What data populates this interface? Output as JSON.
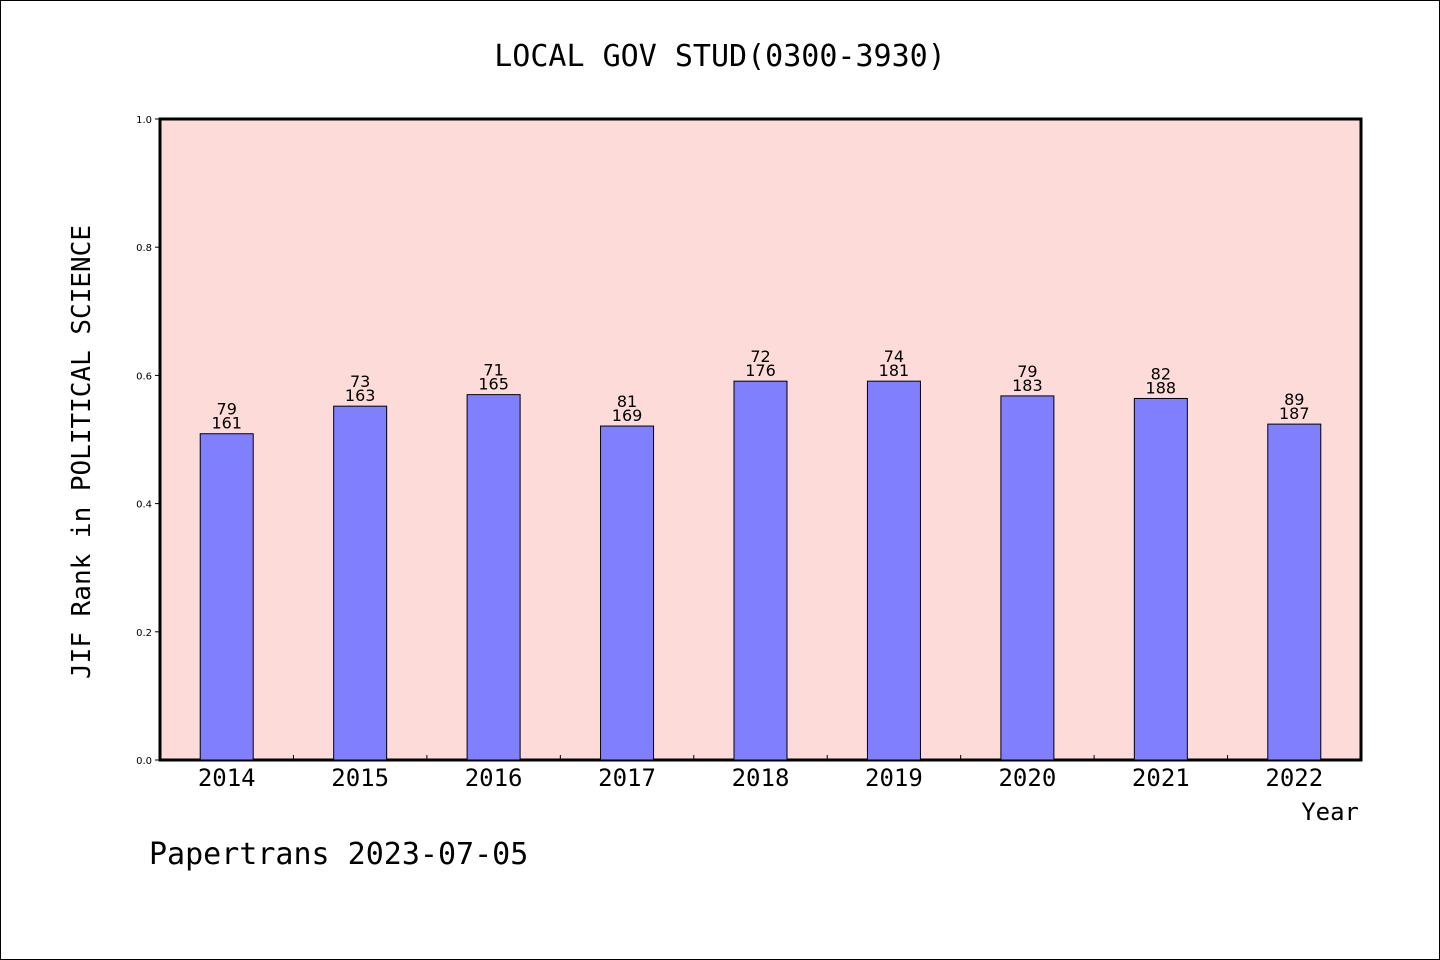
{
  "chart_data": {
    "type": "bar",
    "title": "LOCAL GOV STUD(0300-3930)",
    "xlabel": "Year",
    "ylabel": "JIF Rank in POLITICAL SCIENCE",
    "ylim": [
      0.0,
      1.0
    ],
    "yticks": [
      "0.0",
      "0.2",
      "0.4",
      "0.6",
      "0.8",
      "1.0"
    ],
    "categories": [
      "2014",
      "2015",
      "2016",
      "2017",
      "2018",
      "2019",
      "2020",
      "2021",
      "2022"
    ],
    "values": [
      0.509,
      0.552,
      0.57,
      0.521,
      0.591,
      0.591,
      0.568,
      0.564,
      0.524
    ],
    "rank": [
      "79",
      "73",
      "71",
      "81",
      "72",
      "74",
      "79",
      "82",
      "89"
    ],
    "total": [
      "161",
      "163",
      "165",
      "169",
      "176",
      "181",
      "183",
      "188",
      "187"
    ],
    "colors": {
      "plot_background": "#fddbd8",
      "bar_fill": "#8080ff",
      "bar_stroke": "#000000"
    }
  },
  "footer": "Papertrans 2023-07-05"
}
